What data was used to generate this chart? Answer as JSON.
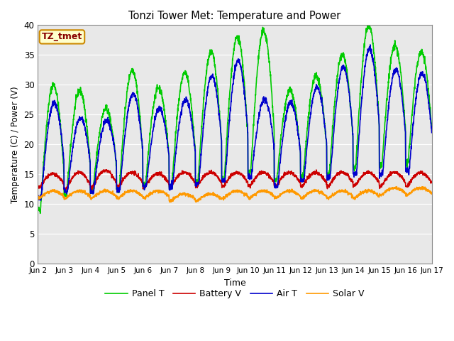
{
  "title": "Tonzi Tower Met: Temperature and Power",
  "xlabel": "Time",
  "ylabel": "Temperature (C) / Power (V)",
  "ylim": [
    0,
    40
  ],
  "xlim_days": [
    2,
    17
  ],
  "xtick_labels": [
    "Jun 2",
    "Jun 3",
    "Jun 4",
    "Jun 5",
    "Jun 6",
    "Jun 7",
    "Jun 8",
    "Jun 9",
    "Jun 10",
    "Jun 11",
    "Jun 12",
    "Jun 13",
    "Jun 14",
    "Jun 15",
    "Jun 16",
    "Jun 17"
  ],
  "xtick_positions": [
    2,
    3,
    4,
    5,
    6,
    7,
    8,
    9,
    10,
    11,
    12,
    13,
    14,
    15,
    16,
    17
  ],
  "colors": {
    "panel_t": "#00cc00",
    "battery_v": "#cc0000",
    "air_t": "#0000cc",
    "solar_v": "#ff9900"
  },
  "legend_labels": [
    "Panel T",
    "Battery V",
    "Air T",
    "Solar V"
  ],
  "annotation_label": "TZ_tmet",
  "annotation_box_color": "#ffffcc",
  "annotation_border_color": "#cc8800",
  "annotation_text_color": "#880000",
  "figure_bg_color": "#ffffff",
  "plot_bg_color": "#e8e8e8",
  "yticks": [
    0,
    5,
    10,
    15,
    20,
    25,
    30,
    35,
    40
  ],
  "linewidth": 1.2,
  "n_points_per_day": 144,
  "n_days": 15,
  "panel_t_base": [
    9.0,
    11.5,
    12.0,
    12.5,
    13.0,
    13.0,
    13.5,
    14.0,
    15.0,
    14.0,
    14.5,
    15.0,
    16.0,
    16.5,
    17.0
  ],
  "panel_t_amp": [
    21.0,
    17.5,
    14.0,
    20.0,
    16.5,
    19.0,
    22.0,
    24.0,
    24.0,
    15.0,
    17.0,
    20.0,
    24.0,
    20.0,
    18.5
  ],
  "air_t_base": [
    11.0,
    12.0,
    12.0,
    12.5,
    13.0,
    13.0,
    13.5,
    14.0,
    14.5,
    13.0,
    14.0,
    14.5,
    15.0,
    15.0,
    15.5
  ],
  "air_t_amp": [
    16.0,
    12.5,
    12.0,
    16.0,
    13.0,
    14.5,
    18.0,
    20.0,
    13.0,
    14.0,
    15.5,
    18.5,
    21.0,
    17.5,
    16.5
  ],
  "battery_v_base": [
    12.8,
    12.5,
    12.8,
    13.0,
    12.8,
    13.0,
    13.0,
    13.0,
    13.0,
    13.0,
    13.0,
    13.0,
    13.0,
    13.0,
    13.0
  ],
  "battery_v_amp": [
    2.3,
    2.8,
    2.8,
    2.3,
    2.3,
    2.3,
    2.3,
    2.3,
    2.3,
    2.3,
    2.3,
    2.3,
    2.3,
    2.3,
    2.3
  ],
  "solar_v_base": [
    11.0,
    11.0,
    11.0,
    11.0,
    11.0,
    10.5,
    10.5,
    11.0,
    11.0,
    11.0,
    11.0,
    11.0,
    11.0,
    11.5,
    11.5
  ],
  "solar_v_amp": [
    1.2,
    1.2,
    1.2,
    1.2,
    1.2,
    1.2,
    1.2,
    1.2,
    1.2,
    1.2,
    1.2,
    1.2,
    1.2,
    1.2,
    1.2
  ]
}
